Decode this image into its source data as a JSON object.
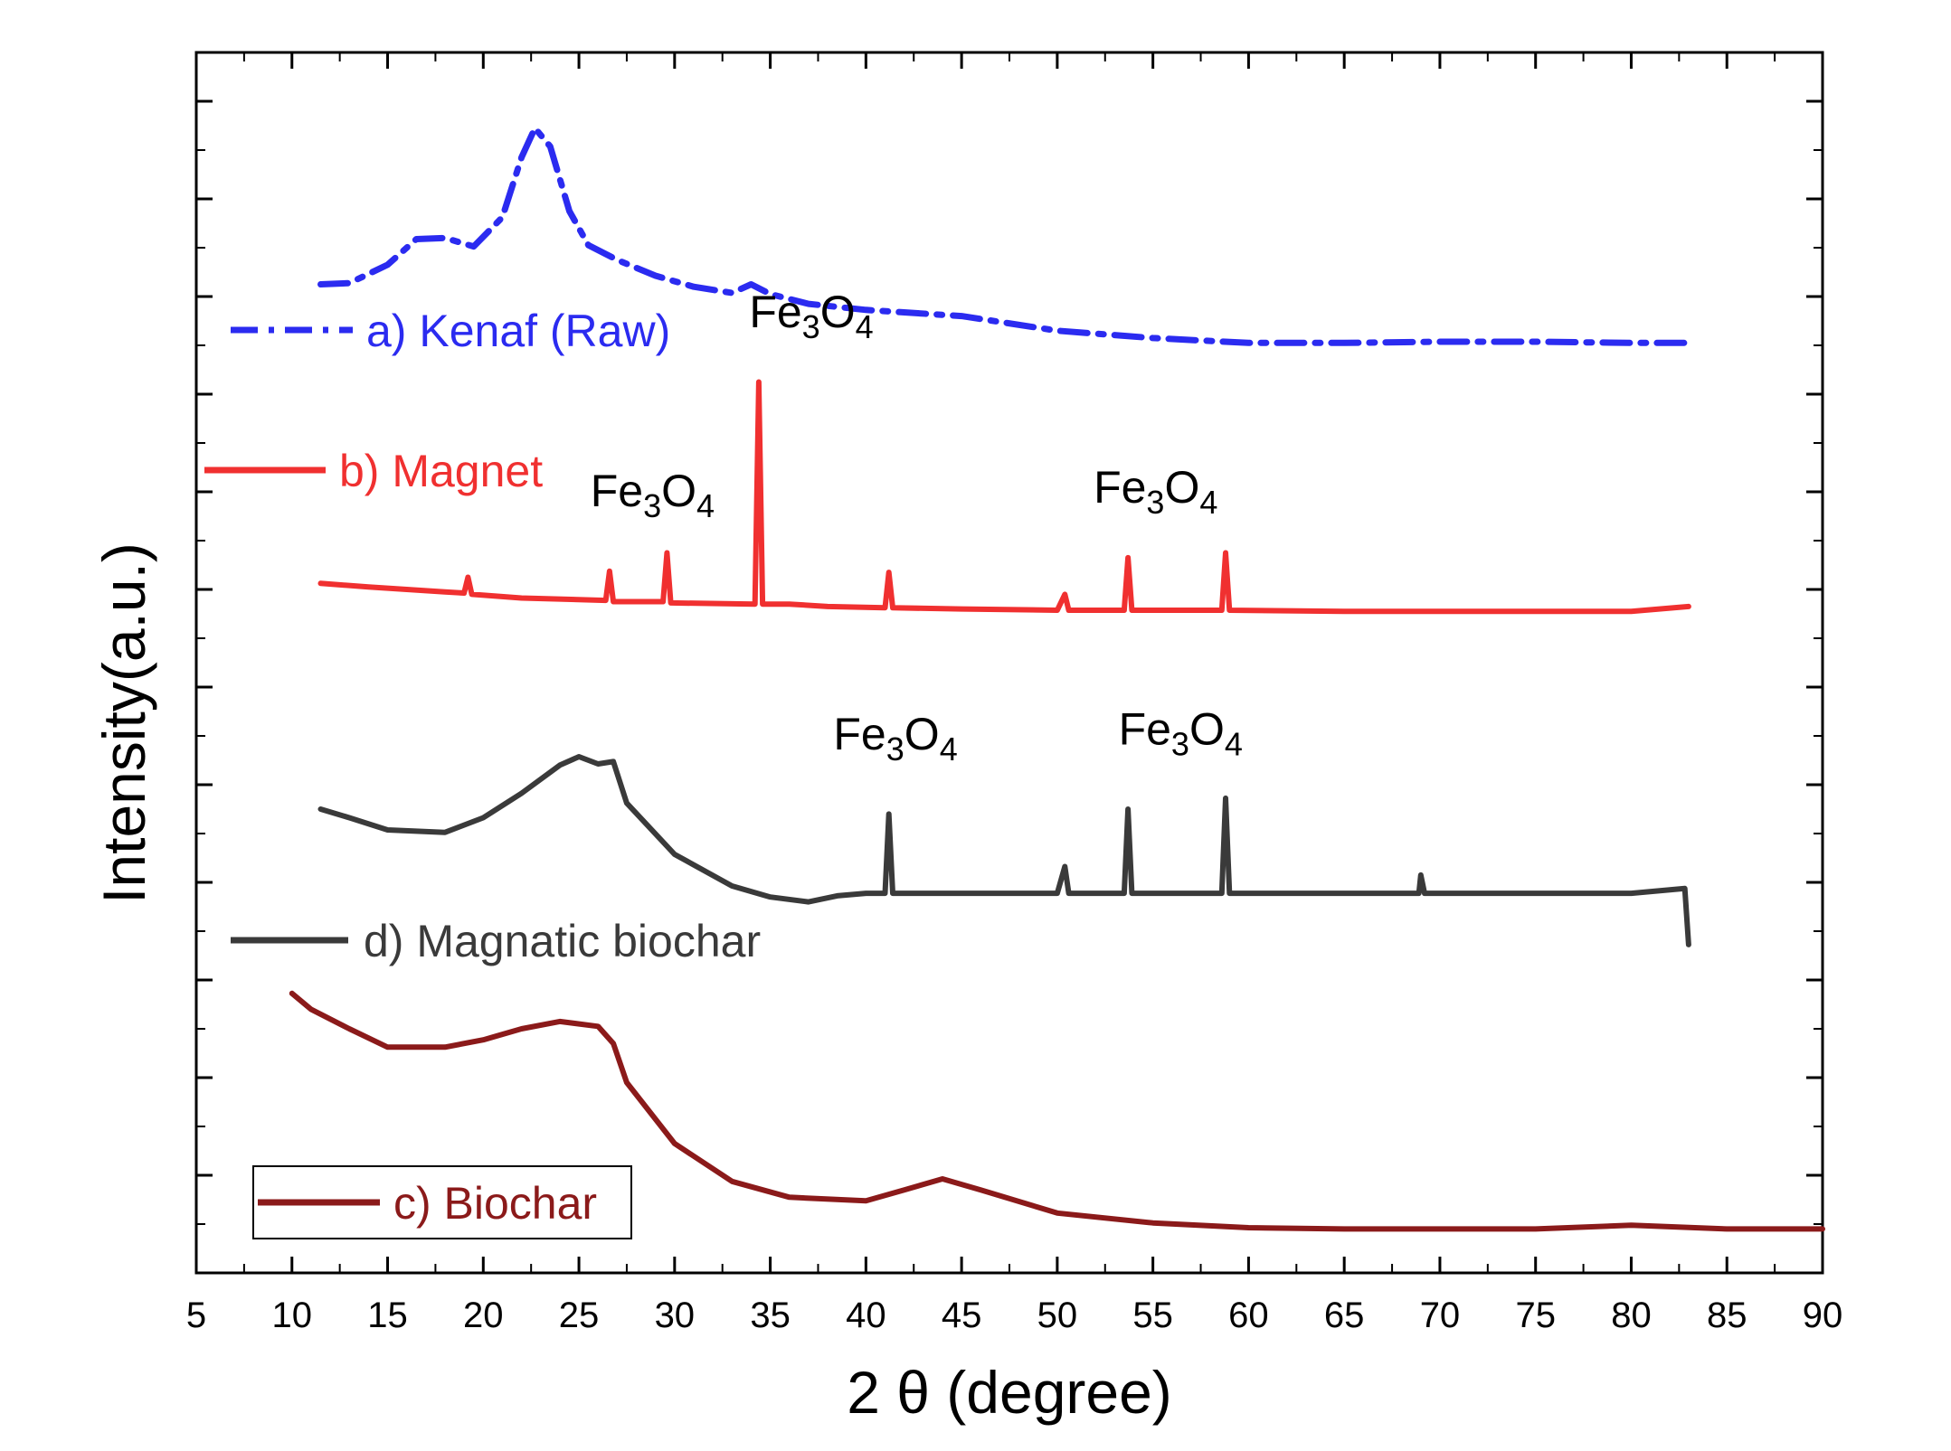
{
  "chart_data": {
    "type": "line",
    "title": "",
    "xlabel": "2 θ (degree)",
    "ylabel": "Intensity(a.u.)",
    "xlim": [
      5,
      90
    ],
    "ylim": [
      0,
      100
    ],
    "xticks": [
      5,
      10,
      15,
      20,
      25,
      30,
      35,
      40,
      45,
      50,
      55,
      60,
      65,
      70,
      75,
      80,
      85,
      90
    ],
    "yticks_labeled": false,
    "series": [
      {
        "name": "a) Kenaf (Raw)",
        "color": "#2b2bf0",
        "style": "dash-dot",
        "points": [
          [
            11.5,
            81.0
          ],
          [
            13,
            81.1
          ],
          [
            15,
            82.6
          ],
          [
            16.5,
            84.7
          ],
          [
            18,
            84.8
          ],
          [
            19.5,
            84.1
          ],
          [
            21,
            86.5
          ],
          [
            22,
            91.4
          ],
          [
            22.7,
            93.8
          ],
          [
            23.5,
            92.3
          ],
          [
            24.5,
            87.0
          ],
          [
            25.5,
            84.2
          ],
          [
            27,
            83.0
          ],
          [
            29,
            81.7
          ],
          [
            31,
            80.8
          ],
          [
            33,
            80.3
          ],
          [
            34,
            81.0
          ],
          [
            35,
            80.2
          ],
          [
            37,
            79.4
          ],
          [
            40,
            78.9
          ],
          [
            45,
            78.4
          ],
          [
            50,
            77.2
          ],
          [
            55,
            76.6
          ],
          [
            60,
            76.2
          ],
          [
            65,
            76.2
          ],
          [
            70,
            76.3
          ],
          [
            75,
            76.3
          ],
          [
            80,
            76.2
          ],
          [
            83,
            76.2
          ]
        ]
      },
      {
        "name": "b) Magnet",
        "color": "#f03030",
        "style": "solid",
        "points": [
          [
            11.5,
            56.5
          ],
          [
            14,
            56.2
          ],
          [
            18,
            55.8
          ],
          [
            19,
            55.7
          ],
          [
            19.2,
            57.0
          ],
          [
            19.4,
            55.6
          ],
          [
            22,
            55.3
          ],
          [
            26.4,
            55.1
          ],
          [
            26.6,
            57.5
          ],
          [
            26.8,
            55.0
          ],
          [
            29.4,
            55.0
          ],
          [
            29.6,
            59.0
          ],
          [
            29.8,
            54.9
          ],
          [
            34.2,
            54.8
          ],
          [
            34.4,
            73.0
          ],
          [
            34.6,
            54.8
          ],
          [
            36,
            54.8
          ],
          [
            38,
            54.6
          ],
          [
            41,
            54.5
          ],
          [
            41.2,
            57.4
          ],
          [
            41.4,
            54.5
          ],
          [
            45,
            54.4
          ],
          [
            50,
            54.3
          ],
          [
            50.4,
            55.6
          ],
          [
            50.6,
            54.3
          ],
          [
            53.5,
            54.3
          ],
          [
            53.7,
            58.6
          ],
          [
            53.9,
            54.3
          ],
          [
            58.6,
            54.3
          ],
          [
            58.8,
            59.0
          ],
          [
            59.0,
            54.3
          ],
          [
            65,
            54.2
          ],
          [
            70,
            54.2
          ],
          [
            75,
            54.2
          ],
          [
            80,
            54.2
          ],
          [
            83,
            54.6
          ]
        ]
      },
      {
        "name": "d)  Magnatic biochar",
        "color": "#3a3a3a",
        "style": "solid",
        "points": [
          [
            11.5,
            38.0
          ],
          [
            13,
            37.3
          ],
          [
            15,
            36.3
          ],
          [
            18,
            36.1
          ],
          [
            20,
            37.3
          ],
          [
            22,
            39.3
          ],
          [
            24,
            41.6
          ],
          [
            25,
            42.3
          ],
          [
            26,
            41.7
          ],
          [
            26.8,
            41.9
          ],
          [
            27.5,
            38.5
          ],
          [
            30,
            34.3
          ],
          [
            33,
            31.7
          ],
          [
            35,
            30.8
          ],
          [
            37,
            30.4
          ],
          [
            38.5,
            30.9
          ],
          [
            40,
            31.1
          ],
          [
            41,
            31.1
          ],
          [
            41.2,
            37.6
          ],
          [
            41.4,
            31.1
          ],
          [
            45,
            31.1
          ],
          [
            50,
            31.1
          ],
          [
            50.4,
            33.3
          ],
          [
            50.6,
            31.1
          ],
          [
            53.5,
            31.1
          ],
          [
            53.7,
            38.0
          ],
          [
            53.9,
            31.1
          ],
          [
            58.6,
            31.1
          ],
          [
            58.8,
            38.9
          ],
          [
            59.0,
            31.1
          ],
          [
            65,
            31.1
          ],
          [
            68.9,
            31.1
          ],
          [
            69.0,
            32.6
          ],
          [
            69.2,
            31.1
          ],
          [
            75,
            31.1
          ],
          [
            80,
            31.1
          ],
          [
            82.8,
            31.5
          ],
          [
            83,
            26.9
          ]
        ]
      },
      {
        "name": "c) Biochar",
        "color": "#8b1a1a",
        "style": "solid",
        "points": [
          [
            10,
            22.9
          ],
          [
            11,
            21.6
          ],
          [
            13,
            20.0
          ],
          [
            15,
            18.5
          ],
          [
            18,
            18.5
          ],
          [
            20,
            19.1
          ],
          [
            22,
            20.0
          ],
          [
            24,
            20.6
          ],
          [
            26,
            20.2
          ],
          [
            26.8,
            18.8
          ],
          [
            27.5,
            15.6
          ],
          [
            30,
            10.6
          ],
          [
            33,
            7.5
          ],
          [
            36,
            6.2
          ],
          [
            40,
            5.9
          ],
          [
            42,
            6.8
          ],
          [
            44,
            7.7
          ],
          [
            46,
            6.8
          ],
          [
            50,
            4.9
          ],
          [
            55,
            4.1
          ],
          [
            60,
            3.7
          ],
          [
            65,
            3.6
          ],
          [
            70,
            3.6
          ],
          [
            75,
            3.6
          ],
          [
            80,
            3.9
          ],
          [
            85,
            3.6
          ],
          [
            90,
            3.6
          ]
        ]
      }
    ],
    "annotations": [
      {
        "text": "Fe",
        "sub1": "3",
        "mid": "O",
        "sub2": "4",
        "x": 33.9,
        "y": 77.5,
        "anchor": "start"
      },
      {
        "text": "Fe",
        "sub1": "3",
        "mid": "O",
        "sub2": "4",
        "x": 25.6,
        "y": 62.8,
        "anchor": "start"
      },
      {
        "text": "Fe",
        "sub1": "3",
        "mid": "O",
        "sub2": "4",
        "x": 51.9,
        "y": 63.1,
        "anchor": "start"
      },
      {
        "text": "Fe",
        "sub1": "3",
        "mid": "O",
        "sub2": "4",
        "x": 38.3,
        "y": 42.9,
        "anchor": "start"
      },
      {
        "text": "Fe",
        "sub1": "3",
        "mid": "O",
        "sub2": "4",
        "x": 53.2,
        "y": 43.3,
        "anchor": "start"
      }
    ],
    "legend_entries": [
      {
        "label": "a) Kenaf (Raw)",
        "color": "#2b2bf0",
        "boxed": false
      },
      {
        "label": "b) Magnet",
        "color": "#f03030",
        "boxed": false
      },
      {
        "label": "d)  Magnatic biochar",
        "color": "#3a3a3a",
        "boxed": false
      },
      {
        "label": "c) Biochar",
        "color": "#8b1a1a",
        "boxed": true
      }
    ]
  }
}
